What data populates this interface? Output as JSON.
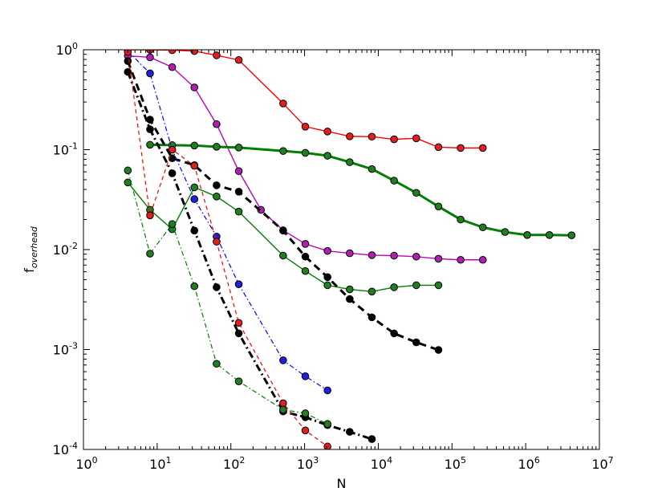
{
  "chart_data": {
    "type": "line",
    "xlabel": "N",
    "ylabel": "f",
    "ylabel_subscript": "overhead",
    "xscale": "log",
    "yscale": "log",
    "xlim": [
      1,
      10000000
    ],
    "ylim": [
      0.0001,
      1
    ],
    "xtick_labels": [
      {
        "base": "10",
        "exp": "0"
      },
      {
        "base": "10",
        "exp": "1"
      },
      {
        "base": "10",
        "exp": "2"
      },
      {
        "base": "10",
        "exp": "3"
      },
      {
        "base": "10",
        "exp": "4"
      },
      {
        "base": "10",
        "exp": "5"
      },
      {
        "base": "10",
        "exp": "6"
      },
      {
        "base": "10",
        "exp": "7"
      }
    ],
    "ytick_labels": [
      {
        "base": "10",
        "exp": "-4"
      },
      {
        "base": "10",
        "exp": "-3"
      },
      {
        "base": "10",
        "exp": "-2"
      },
      {
        "base": "10",
        "exp": "-1"
      },
      {
        "base": "10",
        "exp": "0"
      }
    ],
    "grid": false,
    "series": [
      {
        "color": "#ff0000",
        "marker_color": "#e02020",
        "style": "solid",
        "width": 1.4,
        "x": [
          4,
          8,
          16,
          32,
          64,
          128,
          512,
          1024,
          2048,
          4096,
          8192,
          16384,
          32768,
          65536,
          131072,
          262144
        ],
        "y": [
          1.0,
          1.0,
          0.99,
          0.97,
          0.88,
          0.79,
          0.29,
          0.17,
          0.152,
          0.136,
          0.135,
          0.127,
          0.13,
          0.106,
          0.104,
          0.104
        ]
      },
      {
        "color": "#bf00bf",
        "marker_color": "#b020b0",
        "style": "solid",
        "width": 1.4,
        "x": [
          4,
          8,
          16,
          32,
          64,
          128,
          256,
          512,
          1024,
          2048,
          4096,
          8192,
          16384,
          32768,
          65536,
          131072,
          262144
        ],
        "y": [
          0.87,
          0.84,
          0.67,
          0.42,
          0.18,
          0.061,
          0.025,
          0.0156,
          0.0114,
          0.0097,
          0.0092,
          0.0088,
          0.0087,
          0.0085,
          0.0081,
          0.0079,
          0.0079
        ]
      },
      {
        "color": "#007f00",
        "marker_color": "#207f20",
        "style": "solid",
        "width": 3,
        "x": [
          8,
          16,
          32,
          64,
          128,
          512,
          1024,
          2048,
          4096,
          8192,
          16384,
          32768,
          65536,
          131072,
          262144,
          524288,
          1048576,
          2097152,
          4194304
        ],
        "y": [
          0.112,
          0.111,
          0.11,
          0.107,
          0.105,
          0.097,
          0.093,
          0.087,
          0.075,
          0.064,
          0.049,
          0.037,
          0.027,
          0.02,
          0.0167,
          0.015,
          0.014,
          0.014,
          0.0139
        ]
      },
      {
        "color": "#007f00",
        "marker_color": "#207f20",
        "style": "solid",
        "width": 1.4,
        "x": [
          4,
          8,
          16,
          32,
          64,
          128,
          512,
          1024,
          2048,
          4096,
          8192,
          16384,
          32768,
          65536
        ],
        "y": [
          0.047,
          0.025,
          0.016,
          0.042,
          0.034,
          0.024,
          0.0087,
          0.0061,
          0.0044,
          0.004,
          0.0038,
          0.0042,
          0.0044,
          0.0044
        ]
      },
      {
        "color": "#000000",
        "marker_color": "#000000",
        "style": "dashed",
        "width": 3,
        "x": [
          4,
          8,
          16,
          32,
          64,
          128,
          512,
          1024,
          2048,
          4096,
          8192,
          16384,
          32768,
          65536
        ],
        "y": [
          0.77,
          0.2,
          0.082,
          0.07,
          0.044,
          0.038,
          0.0155,
          0.0085,
          0.0053,
          0.0032,
          0.0021,
          0.00145,
          0.00118,
          0.00099
        ]
      },
      {
        "color": "#000000",
        "marker_color": "#000000",
        "style": "dashdot",
        "width": 3,
        "x": [
          4,
          8,
          16,
          32,
          64,
          128,
          512,
          1024,
          2048,
          4096,
          8192
        ],
        "y": [
          0.6,
          0.16,
          0.058,
          0.0155,
          0.0042,
          0.00145,
          0.00024,
          0.00021,
          0.000175,
          0.00015,
          0.000127
        ]
      },
      {
        "color": "#0000ff",
        "marker_color": "#2020e0",
        "style": "dashdot",
        "width": 1.2,
        "x": [
          4,
          8,
          16,
          32,
          64,
          128,
          512,
          1024,
          2048
        ],
        "y": [
          0.97,
          0.58,
          0.1,
          0.032,
          0.0135,
          0.0045,
          0.00078,
          0.00054,
          0.00039
        ]
      },
      {
        "color": "#ff0000",
        "marker_color": "#e02020",
        "style": "dashed",
        "width": 1.2,
        "x": [
          4,
          8,
          16,
          32,
          64,
          128,
          512,
          1024,
          2048
        ],
        "y": [
          0.95,
          0.022,
          0.1,
          0.069,
          0.012,
          0.00185,
          0.00029,
          0.000155,
          0.000107
        ]
      },
      {
        "color": "#007f00",
        "marker_color": "#207f20",
        "style": "dashdot",
        "width": 1.2,
        "x": [
          4,
          8,
          16,
          32,
          64,
          128,
          512,
          1024,
          2048
        ],
        "y": [
          0.062,
          0.0091,
          0.018,
          0.0043,
          0.00072,
          0.00048,
          0.00025,
          0.00023,
          0.00018
        ]
      }
    ]
  }
}
